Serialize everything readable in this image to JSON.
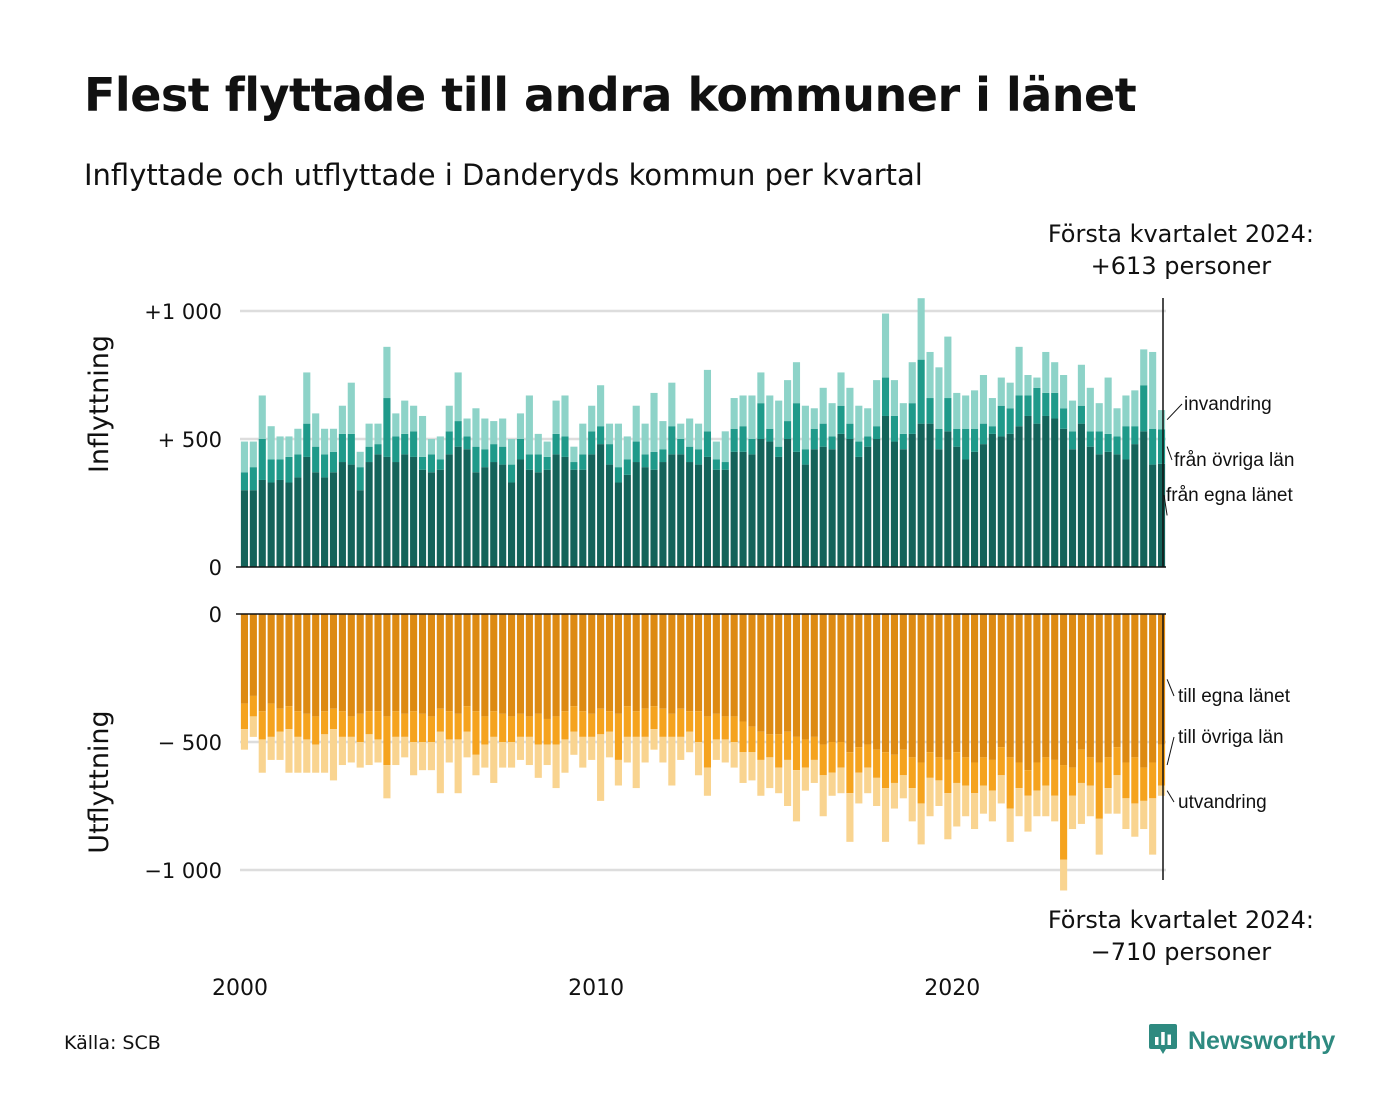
{
  "title": "Flest flyttade till andra kommuner i länet",
  "subtitle": "Inflyttade och utflyttade i Danderyds kommun per kvartal",
  "callout_top": {
    "line1": "Första kvartalet 2024:",
    "line2": "+613 personer"
  },
  "callout_bottom": {
    "line1": "Första kvartalet 2024:",
    "line2": "−710 personer"
  },
  "source": "Källa: SCB",
  "logo": {
    "text": "Newsworthy",
    "icon": "newsworthy-chart-bubble-icon"
  },
  "colors": {
    "in_egna": "#14635a",
    "in_ovriga": "#1f9a8a",
    "in_invandring": "#8dd3c8",
    "out_egna": "#dd8a12",
    "out_ovriga": "#f5a31e",
    "out_utvandring": "#f9d490",
    "grid": "#dddddd",
    "axis": "#111111"
  },
  "chart_data": [
    {
      "type": "bar",
      "stacked": true,
      "panel": "in",
      "ylabel": "Inflyttning",
      "yticks": [
        {
          "value": 0,
          "label": "0"
        },
        {
          "value": 500,
          "label": "+  500"
        },
        {
          "value": 1000,
          "label": "+1 000"
        }
      ],
      "ylim": [
        0,
        1040
      ],
      "x_start": "2000 Q1",
      "x_end": "2024 Q1",
      "xticks": [
        "2000",
        "2010",
        "2020"
      ],
      "series": [
        {
          "name": "från egna länet",
          "values": [
            300,
            300,
            340,
            330,
            340,
            330,
            350,
            430,
            370,
            350,
            370,
            410,
            400,
            300,
            410,
            440,
            430,
            410,
            440,
            430,
            380,
            370,
            380,
            440,
            470,
            460,
            370,
            390,
            410,
            400,
            330,
            420,
            380,
            370,
            380,
            440,
            430,
            380,
            380,
            440,
            480,
            400,
            330,
            360,
            410,
            390,
            380,
            410,
            440,
            440,
            410,
            400,
            430,
            380,
            380,
            450,
            450,
            440,
            500,
            490,
            430,
            500,
            450,
            400,
            460,
            470,
            460,
            520,
            500,
            430,
            470,
            500,
            590,
            490,
            460,
            520,
            560,
            560,
            460,
            530,
            470,
            420,
            450,
            480,
            520,
            510,
            520,
            550,
            590,
            560,
            590,
            580,
            540,
            460,
            560,
            470,
            440,
            450,
            440,
            420,
            480,
            530,
            400,
            403
          ]
        },
        {
          "name": "från övriga län",
          "values": [
            70,
            90,
            160,
            90,
            80,
            100,
            90,
            130,
            100,
            90,
            80,
            110,
            120,
            90,
            60,
            40,
            230,
            100,
            80,
            100,
            50,
            70,
            40,
            90,
            100,
            50,
            100,
            70,
            70,
            70,
            70,
            80,
            60,
            70,
            50,
            80,
            80,
            30,
            60,
            90,
            70,
            80,
            60,
            60,
            80,
            50,
            70,
            50,
            110,
            60,
            60,
            60,
            100,
            40,
            30,
            90,
            100,
            60,
            140,
            50,
            40,
            70,
            190,
            60,
            80,
            90,
            50,
            110,
            60,
            60,
            40,
            50,
            150,
            100,
            60,
            120,
            250,
            100,
            80,
            130,
            70,
            120,
            90,
            80,
            30,
            120,
            100,
            120,
            80,
            140,
            90,
            100,
            80,
            70,
            70,
            60,
            90,
            70,
            70,
            130,
            70,
            180,
            140,
            135
          ]
        },
        {
          "name": "invandring",
          "values": [
            120,
            100,
            170,
            130,
            90,
            80,
            100,
            200,
            130,
            100,
            90,
            110,
            200,
            60,
            90,
            80,
            200,
            90,
            130,
            100,
            160,
            60,
            90,
            100,
            190,
            70,
            150,
            120,
            90,
            110,
            100,
            100,
            230,
            80,
            60,
            130,
            160,
            60,
            120,
            100,
            160,
            80,
            170,
            90,
            140,
            120,
            230,
            110,
            170,
            60,
            110,
            100,
            240,
            70,
            120,
            120,
            120,
            170,
            120,
            130,
            180,
            160,
            160,
            170,
            80,
            140,
            130,
            130,
            140,
            140,
            110,
            180,
            250,
            140,
            120,
            160,
            240,
            180,
            240,
            240,
            140,
            130,
            150,
            190,
            110,
            110,
            100,
            190,
            80,
            40,
            160,
            120,
            130,
            120,
            160,
            170,
            110,
            220,
            110,
            120,
            140,
            140,
            300,
            75
          ]
        }
      ]
    },
    {
      "type": "bar",
      "stacked": true,
      "panel": "out",
      "ylabel": "Utflyttning",
      "yticks": [
        {
          "value": 0,
          "label": "0"
        },
        {
          "value": -500,
          "label": "−  500"
        },
        {
          "value": -1000,
          "label": "−1 000"
        }
      ],
      "ylim": [
        -1040,
        0
      ],
      "x_start": "2000 Q1",
      "x_end": "2024 Q1",
      "xticks": [
        "2000",
        "2010",
        "2020"
      ],
      "series": [
        {
          "name": "till egna länet",
          "values": [
            -350,
            -320,
            -380,
            -350,
            -370,
            -360,
            -380,
            -390,
            -400,
            -380,
            -370,
            -380,
            -400,
            -390,
            -380,
            -380,
            -400,
            -380,
            -390,
            -380,
            -390,
            -400,
            -370,
            -380,
            -390,
            -360,
            -380,
            -400,
            -380,
            -390,
            -400,
            -390,
            -400,
            -390,
            -410,
            -400,
            -380,
            -360,
            -380,
            -390,
            -370,
            -380,
            -390,
            -360,
            -380,
            -370,
            -360,
            -370,
            -390,
            -370,
            -380,
            -380,
            -400,
            -390,
            -400,
            -400,
            -420,
            -440,
            -460,
            -470,
            -470,
            -460,
            -480,
            -490,
            -480,
            -510,
            -500,
            -500,
            -540,
            -520,
            -510,
            -530,
            -540,
            -550,
            -530,
            -560,
            -580,
            -540,
            -560,
            -570,
            -540,
            -560,
            -580,
            -560,
            -570,
            -520,
            -560,
            -580,
            -610,
            -580,
            -560,
            -570,
            -590,
            -600,
            -530,
            -560,
            -580,
            -560,
            -520,
            -580,
            -560,
            -600,
            -580,
            -510
          ]
        },
        {
          "name": "till övriga län",
          "values": [
            -100,
            -80,
            -110,
            -130,
            -90,
            -90,
            -100,
            -100,
            -110,
            -90,
            -80,
            -100,
            -80,
            -110,
            -90,
            -110,
            -190,
            -100,
            -90,
            -120,
            -110,
            -100,
            -90,
            -110,
            -100,
            -100,
            -170,
            -110,
            -100,
            -110,
            -100,
            -90,
            -80,
            -120,
            -100,
            -110,
            -110,
            -100,
            -100,
            -90,
            -100,
            -80,
            -180,
            -120,
            -100,
            -110,
            -90,
            -110,
            -90,
            -110,
            -80,
            -120,
            -200,
            -100,
            -90,
            -100,
            -120,
            -100,
            -110,
            -90,
            -130,
            -110,
            -130,
            -110,
            -90,
            -120,
            -120,
            -100,
            -160,
            -100,
            -90,
            -110,
            -140,
            -110,
            -100,
            -120,
            -160,
            -100,
            -90,
            -130,
            -120,
            -110,
            -120,
            -110,
            -120,
            -110,
            -200,
            -100,
            -100,
            -110,
            -110,
            -140,
            -370,
            -110,
            -130,
            -110,
            -220,
            -120,
            -110,
            -140,
            -180,
            -130,
            -140,
            -160
          ]
        },
        {
          "name": "utvandring",
          "values": [
            -80,
            -80,
            -130,
            -90,
            -110,
            -170,
            -140,
            -130,
            -110,
            -150,
            -200,
            -110,
            -100,
            -100,
            -120,
            -90,
            -130,
            -110,
            -80,
            -130,
            -110,
            -110,
            -240,
            -90,
            -210,
            -100,
            -80,
            -90,
            -180,
            -100,
            -100,
            -90,
            -110,
            -130,
            -80,
            -170,
            -130,
            -90,
            -120,
            -90,
            -260,
            -100,
            -100,
            -100,
            -200,
            -100,
            -80,
            -100,
            -190,
            -90,
            -80,
            -130,
            -110,
            -80,
            -90,
            -100,
            -120,
            -110,
            -140,
            -120,
            -100,
            -180,
            -200,
            -90,
            -90,
            -160,
            -90,
            -100,
            -190,
            -120,
            -100,
            -110,
            -210,
            -100,
            -90,
            -130,
            -160,
            -150,
            -100,
            -180,
            -170,
            -120,
            -140,
            -110,
            -120,
            -110,
            -130,
            -110,
            -140,
            -100,
            -120,
            -100,
            -120,
            -130,
            -160,
            -120,
            -140,
            -100,
            -150,
            -120,
            -130,
            -110,
            -220,
            -40
          ]
        }
      ],
      "segment_labels": [
        "till egna länet",
        "till övriga län",
        "utvandring"
      ]
    }
  ]
}
